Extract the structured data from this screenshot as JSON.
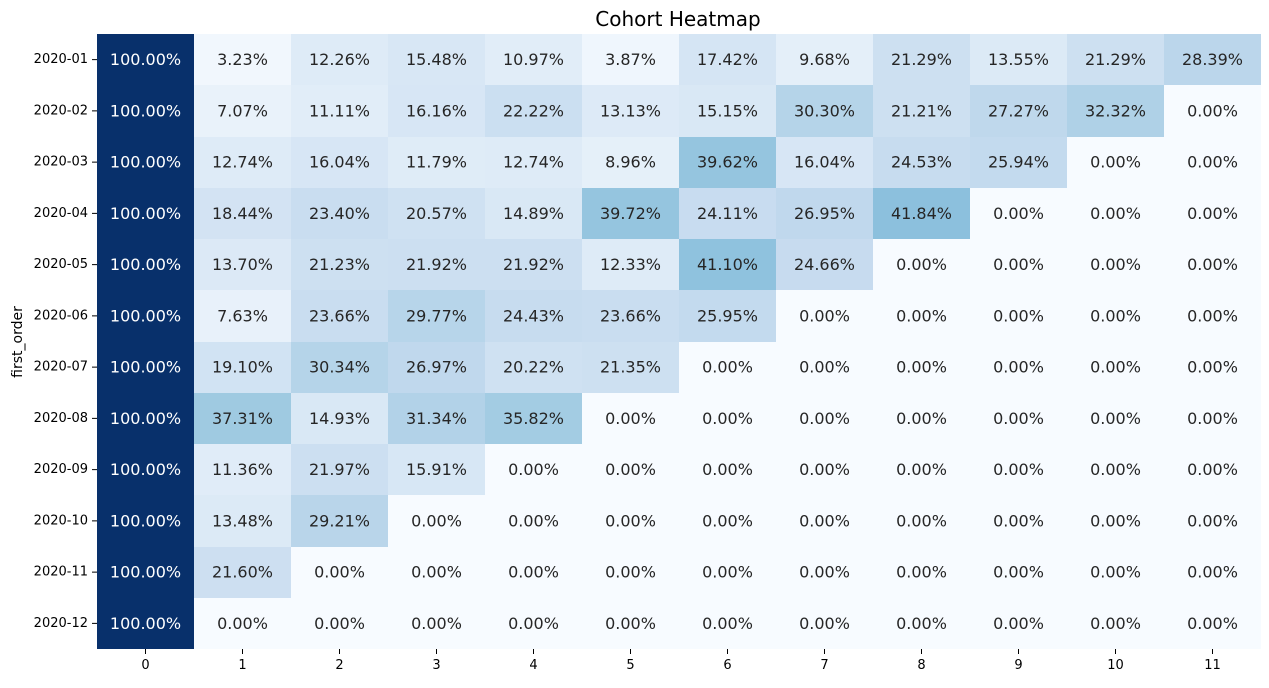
{
  "chart_data": {
    "type": "heatmap",
    "title": "Cohort Heatmap",
    "xlabel": "",
    "ylabel": "first_order",
    "colormap": "Blues",
    "color_range": [
      0,
      1
    ],
    "colorbar": false,
    "x": [
      "0",
      "1",
      "2",
      "3",
      "4",
      "5",
      "6",
      "7",
      "8",
      "9",
      "10",
      "11"
    ],
    "y": [
      "2020-01",
      "2020-02",
      "2020-03",
      "2020-04",
      "2020-05",
      "2020-06",
      "2020-07",
      "2020-08",
      "2020-09",
      "2020-10",
      "2020-11",
      "2020-12"
    ],
    "values": [
      [
        1.0,
        0.0323,
        0.1226,
        0.1548,
        0.1097,
        0.0387,
        0.1742,
        0.0968,
        0.2129,
        0.1355,
        0.2129,
        0.2839
      ],
      [
        1.0,
        0.0707,
        0.1111,
        0.1616,
        0.2222,
        0.1313,
        0.1515,
        0.303,
        0.2121,
        0.2727,
        0.3232,
        0.0
      ],
      [
        1.0,
        0.1274,
        0.1604,
        0.1179,
        0.1274,
        0.0896,
        0.3962,
        0.1604,
        0.2453,
        0.2594,
        0.0,
        0.0
      ],
      [
        1.0,
        0.1844,
        0.234,
        0.2057,
        0.1489,
        0.3972,
        0.2411,
        0.2695,
        0.4184,
        0.0,
        0.0,
        0.0
      ],
      [
        1.0,
        0.137,
        0.2123,
        0.2192,
        0.2192,
        0.1233,
        0.411,
        0.2466,
        0.0,
        0.0,
        0.0,
        0.0
      ],
      [
        1.0,
        0.0763,
        0.2366,
        0.2977,
        0.2443,
        0.2366,
        0.2595,
        0.0,
        0.0,
        0.0,
        0.0,
        0.0
      ],
      [
        1.0,
        0.191,
        0.3034,
        0.2697,
        0.2022,
        0.2135,
        0.0,
        0.0,
        0.0,
        0.0,
        0.0,
        0.0
      ],
      [
        1.0,
        0.3731,
        0.1493,
        0.3134,
        0.3582,
        0.0,
        0.0,
        0.0,
        0.0,
        0.0,
        0.0,
        0.0
      ],
      [
        1.0,
        0.1136,
        0.2197,
        0.1591,
        0.0,
        0.0,
        0.0,
        0.0,
        0.0,
        0.0,
        0.0,
        0.0
      ],
      [
        1.0,
        0.1348,
        0.2921,
        0.0,
        0.0,
        0.0,
        0.0,
        0.0,
        0.0,
        0.0,
        0.0,
        0.0
      ],
      [
        1.0,
        0.216,
        0.0,
        0.0,
        0.0,
        0.0,
        0.0,
        0.0,
        0.0,
        0.0,
        0.0,
        0.0
      ],
      [
        1.0,
        0.0,
        0.0,
        0.0,
        0.0,
        0.0,
        0.0,
        0.0,
        0.0,
        0.0,
        0.0,
        0.0
      ]
    ],
    "labels": [
      [
        "100.00%",
        "3.23%",
        "12.26%",
        "15.48%",
        "10.97%",
        "3.87%",
        "17.42%",
        "9.68%",
        "21.29%",
        "13.55%",
        "21.29%",
        "28.39%"
      ],
      [
        "100.00%",
        "7.07%",
        "11.11%",
        "16.16%",
        "22.22%",
        "13.13%",
        "15.15%",
        "30.30%",
        "21.21%",
        "27.27%",
        "32.32%",
        "0.00%"
      ],
      [
        "100.00%",
        "12.74%",
        "16.04%",
        "11.79%",
        "12.74%",
        "8.96%",
        "39.62%",
        "16.04%",
        "24.53%",
        "25.94%",
        "0.00%",
        "0.00%"
      ],
      [
        "100.00%",
        "18.44%",
        "23.40%",
        "20.57%",
        "14.89%",
        "39.72%",
        "24.11%",
        "26.95%",
        "41.84%",
        "0.00%",
        "0.00%",
        "0.00%"
      ],
      [
        "100.00%",
        "13.70%",
        "21.23%",
        "21.92%",
        "21.92%",
        "12.33%",
        "41.10%",
        "24.66%",
        "0.00%",
        "0.00%",
        "0.00%",
        "0.00%"
      ],
      [
        "100.00%",
        "7.63%",
        "23.66%",
        "29.77%",
        "24.43%",
        "23.66%",
        "25.95%",
        "0.00%",
        "0.00%",
        "0.00%",
        "0.00%",
        "0.00%"
      ],
      [
        "100.00%",
        "19.10%",
        "30.34%",
        "26.97%",
        "20.22%",
        "21.35%",
        "0.00%",
        "0.00%",
        "0.00%",
        "0.00%",
        "0.00%",
        "0.00%"
      ],
      [
        "100.00%",
        "37.31%",
        "14.93%",
        "31.34%",
        "35.82%",
        "0.00%",
        "0.00%",
        "0.00%",
        "0.00%",
        "0.00%",
        "0.00%",
        "0.00%"
      ],
      [
        "100.00%",
        "11.36%",
        "21.97%",
        "15.91%",
        "0.00%",
        "0.00%",
        "0.00%",
        "0.00%",
        "0.00%",
        "0.00%",
        "0.00%",
        "0.00%"
      ],
      [
        "100.00%",
        "13.48%",
        "29.21%",
        "0.00%",
        "0.00%",
        "0.00%",
        "0.00%",
        "0.00%",
        "0.00%",
        "0.00%",
        "0.00%",
        "0.00%"
      ],
      [
        "100.00%",
        "21.60%",
        "0.00%",
        "0.00%",
        "0.00%",
        "0.00%",
        "0.00%",
        "0.00%",
        "0.00%",
        "0.00%",
        "0.00%",
        "0.00%"
      ],
      [
        "100.00%",
        "0.00%",
        "0.00%",
        "0.00%",
        "0.00%",
        "0.00%",
        "0.00%",
        "0.00%",
        "0.00%",
        "0.00%",
        "0.00%",
        "0.00%"
      ]
    ],
    "colors": {
      "background": "#ffffff",
      "text_dark": "#262626",
      "text_light": "#ffffff"
    }
  }
}
